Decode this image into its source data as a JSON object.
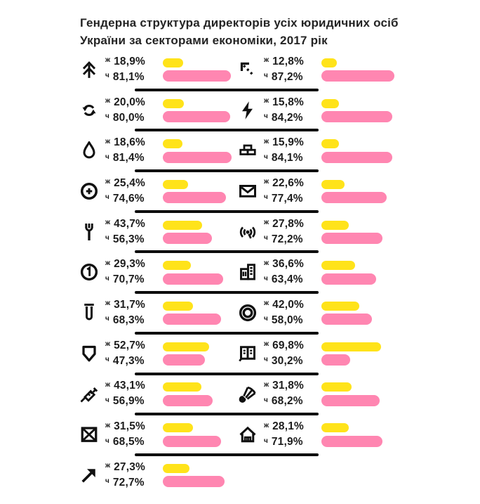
{
  "header": {
    "title_line1": "Гендерна структура директорів усіх юридичних осіб",
    "title_line2": "України за секторами економіки,  2017 рік"
  },
  "legend": {
    "female_prefix": "ж",
    "male_prefix": "ч"
  },
  "colors": {
    "female": "#ffe31a",
    "male": "#ff86b1",
    "ink": "#0c0c0c",
    "text": "#1d1d1d"
  },
  "sectors": [
    {
      "icon": "fir-tree",
      "female_label": "18,9%",
      "male_label": "81,1%",
      "female_value": 18.9,
      "male_value": 81.1
    },
    {
      "icon": "arrow-up-left-dashed",
      "female_label": "12,8%",
      "male_label": "87,2%",
      "female_value": 12.8,
      "male_value": 87.2
    },
    {
      "icon": "recycle-arrows",
      "female_label": "20,0%",
      "male_label": "80,0%",
      "female_value": 20.0,
      "male_value": 80.0
    },
    {
      "icon": "lightning",
      "female_label": "15,8%",
      "male_label": "84,2%",
      "female_value": 15.8,
      "male_value": 84.2
    },
    {
      "icon": "water-drop",
      "female_label": "18,6%",
      "male_label": "81,4%",
      "female_value": 18.6,
      "male_value": 81.4
    },
    {
      "icon": "bricks",
      "female_label": "15,9%",
      "male_label": "84,1%",
      "female_value": 15.9,
      "male_value": 84.1
    },
    {
      "icon": "circle-cross-button",
      "female_label": "25,4%",
      "male_label": "74,6%",
      "female_value": 25.4,
      "male_value": 74.6
    },
    {
      "icon": "envelope",
      "female_label": "22,6%",
      "male_label": "77,4%",
      "female_value": 22.6,
      "male_value": 77.4
    },
    {
      "icon": "fork",
      "female_label": "43,7%",
      "male_label": "56,3%",
      "female_value": 43.7,
      "male_value": 56.3
    },
    {
      "icon": "broadcast",
      "female_label": "27,8%",
      "male_label": "72,2%",
      "female_value": 27.8,
      "male_value": 72.2
    },
    {
      "icon": "coin-one",
      "female_label": "29,3%",
      "male_label": "70,7%",
      "female_value": 29.3,
      "male_value": 70.7
    },
    {
      "icon": "buildings",
      "female_label": "36,6%",
      "male_label": "63,4%",
      "female_value": 36.6,
      "male_value": 63.4
    },
    {
      "icon": "test-tube",
      "female_label": "31,7%",
      "male_label": "68,3%",
      "female_value": 31.7,
      "male_value": 68.3
    },
    {
      "icon": "double-ring",
      "female_label": "42,0%",
      "male_label": "58,0%",
      "female_value": 42.0,
      "male_value": 58.0
    },
    {
      "icon": "shield",
      "female_label": "52,7%",
      "male_label": "47,3%",
      "female_value": 52.7,
      "male_value": 47.3
    },
    {
      "icon": "open-book",
      "female_label": "69,8%",
      "male_label": "30,2%",
      "female_value": 69.8,
      "male_value": 30.2
    },
    {
      "icon": "syringe",
      "female_label": "43,1%",
      "male_label": "56,9%",
      "female_value": 43.1,
      "male_value": 56.9
    },
    {
      "icon": "shuttlecock",
      "female_label": "31,8%",
      "male_label": "68,2%",
      "female_value": 31.8,
      "male_value": 68.2
    },
    {
      "icon": "crossed-box",
      "female_label": "31,5%",
      "male_label": "68,5%",
      "female_value": 31.5,
      "male_value": 68.5
    },
    {
      "icon": "house",
      "female_label": "28,1%",
      "male_label": "71,9%",
      "female_value": 28.1,
      "male_value": 71.9
    },
    {
      "icon": "arrow-up-right",
      "female_label": "27,3%",
      "male_label": "72,7%",
      "female_value": 27.3,
      "male_value": 72.7
    }
  ],
  "chart_data": {
    "type": "bar",
    "orientation": "horizontal",
    "title": "Гендерна структура директорів усіх юридичних осіб України за секторами економіки, 2017 рік",
    "unit": "%",
    "xlim": [
      0,
      100
    ],
    "grid": false,
    "legend_position": "inline-prefixes (ж above, ч below, per sector)",
    "layout": "two-column grid of 11 rows; each sector = icon + paired horizontal bars; thick black dividers between rows",
    "categories": [
      "fir-tree",
      "arrow-up-left-dashed",
      "recycle-arrows",
      "lightning",
      "water-drop",
      "bricks",
      "circle-cross-button",
      "envelope",
      "fork",
      "broadcast",
      "coin-one",
      "buildings",
      "test-tube",
      "double-ring",
      "shield",
      "open-book",
      "syringe",
      "shuttlecock",
      "crossed-box",
      "house",
      "arrow-up-right"
    ],
    "series": [
      {
        "name": "ж",
        "color": "#ffe31a",
        "values": [
          18.9,
          12.8,
          20.0,
          15.8,
          18.6,
          15.9,
          25.4,
          22.6,
          43.7,
          27.8,
          29.3,
          36.6,
          31.7,
          42.0,
          52.7,
          69.8,
          43.1,
          31.8,
          31.5,
          28.1,
          27.3
        ]
      },
      {
        "name": "ч",
        "color": "#ff86b1",
        "values": [
          81.1,
          87.2,
          80.0,
          84.2,
          81.4,
          84.1,
          74.6,
          77.4,
          56.3,
          72.2,
          70.7,
          63.4,
          68.3,
          58.0,
          47.3,
          30.2,
          56.9,
          68.2,
          68.5,
          71.9,
          72.7
        ]
      }
    ]
  }
}
